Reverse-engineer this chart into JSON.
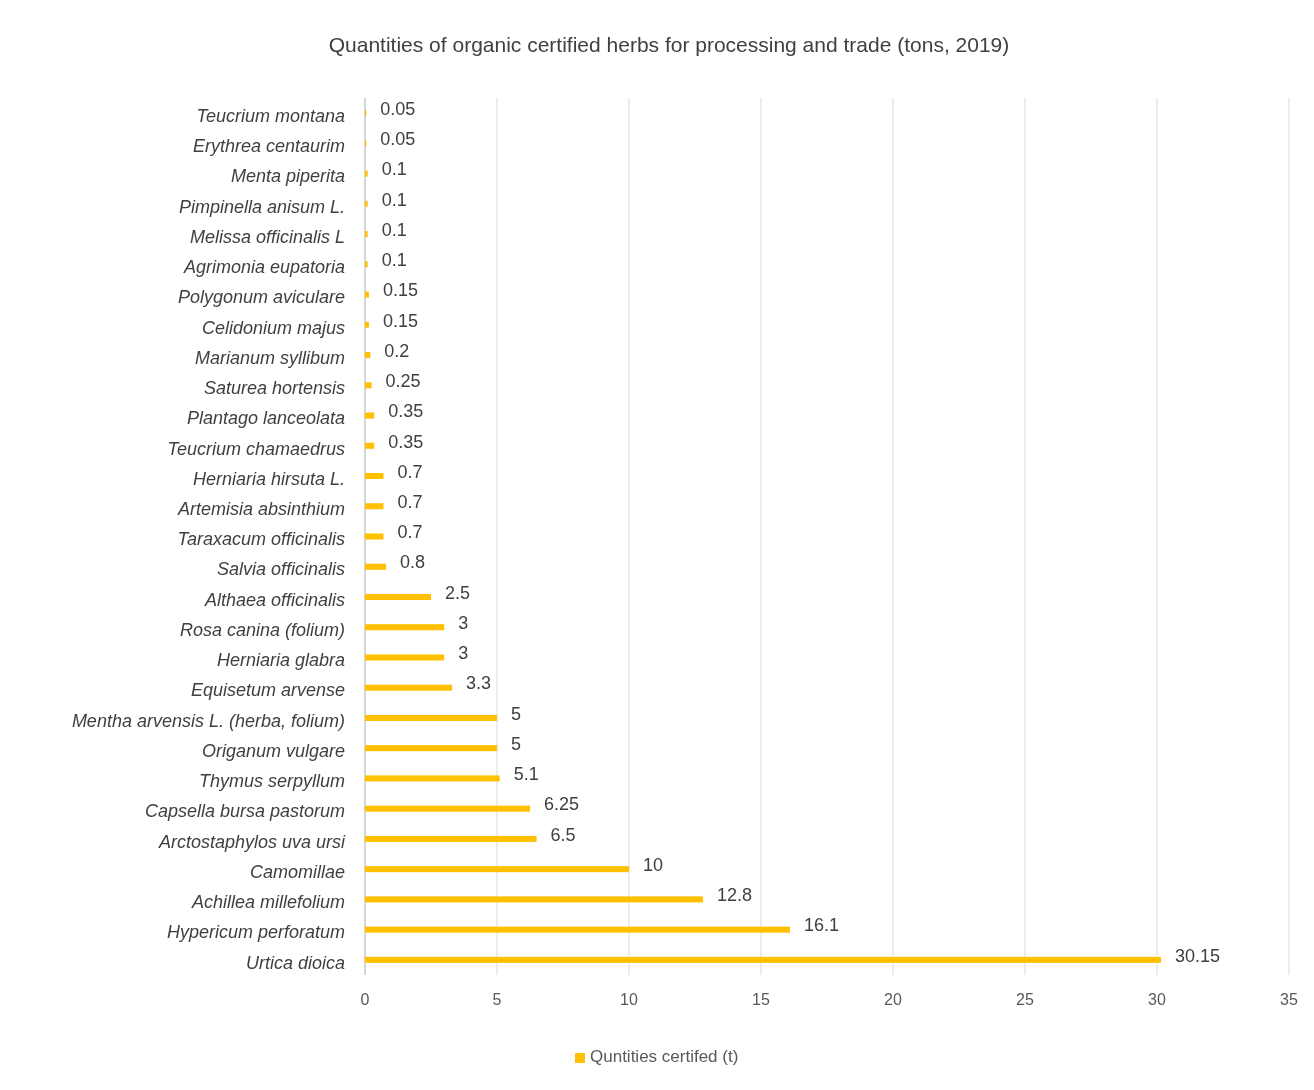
{
  "chart_data": {
    "type": "bar",
    "orientation": "horizontal",
    "title": "Quantities of organic certified herbs for processing and trade (tons, 2019)",
    "categories": [
      "Teucrium montana",
      "Erythrea centaurim",
      "Menta piperita",
      "Pimpinella anisum L.",
      "Melissa officinalis L",
      "Agrimonia eupatoria",
      "Polygonum aviculare",
      "Celidonium majus",
      "Marianum syllibum",
      "Saturea hortensis",
      "Plantago lanceolata",
      "Teucrium chamaedrus",
      "Herniaria  hirsuta L.",
      "Artemisia absinthium",
      "Taraxacum officinalis",
      "Salvia officinalis",
      "Althaea officinalis",
      "Rosa canina (folium)",
      "Herniaria glabra",
      "Equisetum arvense",
      "Mentha arvensis L. (herba, folium)",
      "Origanum vulgare",
      "Thymus serpyllum",
      "Capsella bursa pastorum",
      "Arctostaphylos uva ursi",
      "Camomillae",
      "Achillea millefolium",
      "Hypericum perforatum",
      "Urtica dioica"
    ],
    "series": [
      {
        "name": "Quntities certifed (t)",
        "color": "#ffc000",
        "values": [
          0.05,
          0.05,
          0.1,
          0.1,
          0.1,
          0.1,
          0.15,
          0.15,
          0.2,
          0.25,
          0.35,
          0.35,
          0.7,
          0.7,
          0.7,
          0.8,
          2.5,
          3,
          3,
          3.3,
          5,
          5,
          5.1,
          6.25,
          6.5,
          10,
          12.8,
          16.1,
          30.15
        ]
      }
    ],
    "xlim": [
      0,
      35
    ],
    "xticks": [
      0,
      5,
      10,
      15,
      20,
      25,
      30,
      35
    ],
    "grid": "x",
    "data_labels": true,
    "legend": "bottom"
  }
}
